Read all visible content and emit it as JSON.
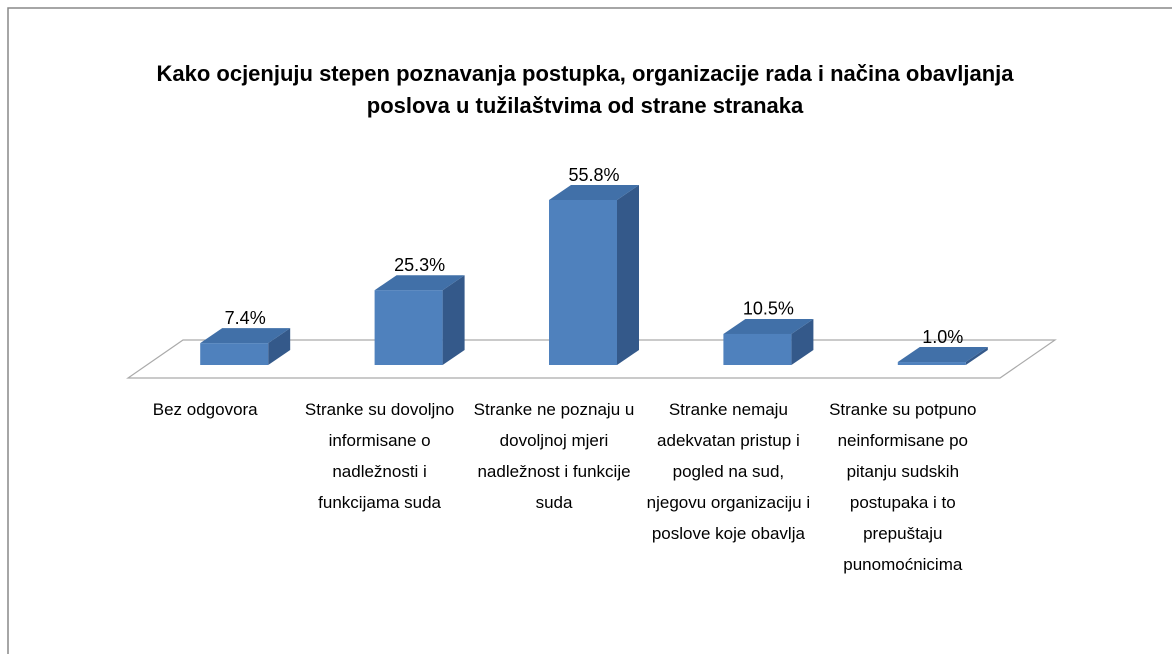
{
  "chart_data": {
    "type": "bar3d",
    "title": "Kako ocjenjuju stepen poznavanja postupka, organizacije rada i načina obavljanja poslova u tužilaštvima od strane stranaka",
    "categories": [
      "Bez odgovora",
      "Stranke su dovoljno informisane o nadležnosti i funkcijama suda",
      "Stranke ne poznaju u dovoljnoj mjeri nadležnost i funkcije suda",
      "Stranke nemaju adekvatan pristup i pogled na sud, njegovu organizaciju i poslove koje obavlja",
      "Stranke su potpuno neinformisane po pitanju sudskih postupaka i to prepuštaju punomoćnicima"
    ],
    "values": [
      7.4,
      25.3,
      55.8,
      10.5,
      1.0
    ],
    "value_labels": [
      "7.4%",
      "25.3%",
      "55.8%",
      "10.5%",
      "1.0%"
    ],
    "color": "#4f81bd"
  }
}
